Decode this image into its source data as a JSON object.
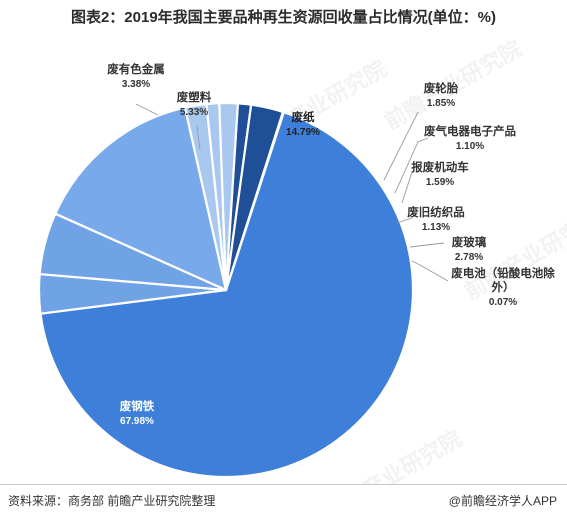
{
  "chart_data": {
    "type": "pie",
    "title": "图表2：2019年我国主要品种再生资源回收量占比情况(单位：%)",
    "unit": "%",
    "categories": [
      "废钢铁",
      "废有色金属",
      "废塑料",
      "废纸",
      "废轮胎",
      "废气电器电子产品",
      "报废机动车",
      "废旧纺织品",
      "废玻璃",
      "废电池（铅酸电池除外）"
    ],
    "values": [
      67.98,
      3.38,
      5.33,
      14.79,
      1.85,
      1.1,
      1.59,
      1.13,
      2.78,
      0.07
    ],
    "value_labels": [
      "67.98%",
      "3.38%",
      "5.33%",
      "14.79%",
      "1.85%",
      "1.10%",
      "1.59%",
      "1.13%",
      "2.78%",
      "0.07%"
    ],
    "colors": [
      "#3d7fd9",
      "#6fa3e5",
      "#6fa3e5",
      "#78aaeb",
      "#a9c8f0",
      "#a9c8f0",
      "#a9c8f0",
      "#1f4f96",
      "#1f4f96",
      "#1f4f96"
    ],
    "labels": [
      {
        "lines": [
          "废钢铁"
        ],
        "pct": "67.98%"
      },
      {
        "lines": [
          "废有色金属"
        ],
        "pct": "3.38%"
      },
      {
        "lines": [
          "废塑料"
        ],
        "pct": "5.33%"
      },
      {
        "lines": [
          "废纸"
        ],
        "pct": "14.79%"
      },
      {
        "lines": [
          "废轮胎"
        ],
        "pct": "1.85%"
      },
      {
        "lines": [
          "废气电器电子产品"
        ],
        "pct": "1.10%"
      },
      {
        "lines": [
          "报废机动车"
        ],
        "pct": "1.59%"
      },
      {
        "lines": [
          "废旧纺织品"
        ],
        "pct": "1.13%"
      },
      {
        "lines": [
          "废玻璃"
        ],
        "pct": "2.78%"
      },
      {
        "lines": [
          "废电池（铅酸电池除",
          "外）"
        ],
        "pct": "0.07%"
      }
    ]
  },
  "footer": {
    "source": "资料来源：商务部 前瞻产业研究院整理",
    "brand": "@前瞻经济学人APP"
  },
  "watermark": {
    "text": "前瞻产业研究院"
  }
}
